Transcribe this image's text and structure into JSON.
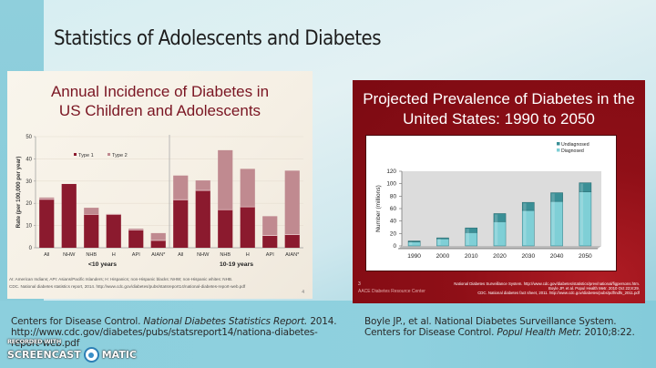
{
  "slide": {
    "title": "Statistics of Adolescents and Diabetes"
  },
  "left_figure": {
    "title_line1": "Annual Incidence of Diabetes in",
    "title_line2": "US Children and Adolescents",
    "footnote1": "AI: American Indians; API: Asians/Pacific Islanders; H: Hispanics; non-Hispanic blacks: NHW; non-Hispanic whites: NHB.",
    "footnote2": "CDC. National diabetes statistics report, 2014. http://www.cdc.gov/diabetes/pubs/statsreport14/national-diabetes-report-web.pdf",
    "page_number": "4"
  },
  "right_figure": {
    "title_line1": "Projected Prevalence of Diabetes in the",
    "title_line2": "United States: 1990 to 2050",
    "slide_number": "3",
    "brand": "AACE Diabetes Resource Center",
    "ref1": "National Diabetes Surveillance System. http://www.cdc.gov/diabetes/statistics/prev/national/figpersons.htm.",
    "ref2": "Boyle JP, et al. Popul Health Metr. 2010 Oct 22;8:29.",
    "ref3": "CDC. National diabetes fact sheet, 2011. http://www.cdc.gov/diabetes/pubs/pdf/ndfs_2011.pdf"
  },
  "references": {
    "left_line1_a": "Centers for Disease Control. ",
    "left_line1_italic": "National Diabetes Statistics Report.",
    "left_line1_b": " 2014.",
    "left_line2": "http://www.cdc.gov/diabetes/pubs/statsreport14/nationa-diabetes-",
    "left_line3": "report-web.pdf",
    "right_line1": "Boyle JP., et al.  National Diabetes Surveillance System.",
    "right_line2_a": "Centers for Disease Control. ",
    "right_line2_italic": "Popul Health Metr.",
    "right_line2_b": " 2010;8:22."
  },
  "watermark": {
    "recorded": "RECORDED WITH",
    "brand_a": "SCREENCAST",
    "brand_b": "MATIC"
  },
  "colors": {
    "type1": "#8b1a2e",
    "type2": "#c08a90",
    "diagnosed": "#7fcfd6",
    "undiagnosed": "#3a8f96",
    "title_red": "#7a1522",
    "frame_red": "#8f0f17"
  },
  "chart_data": [
    {
      "type": "bar",
      "stacked": true,
      "title": "Annual Incidence of Diabetes in US Children and Adolescents",
      "xlabel": "",
      "ylabel": "Rate (per 100,000 per year)",
      "ylim": [
        0,
        50
      ],
      "yticks": [
        0,
        10,
        20,
        30,
        40,
        50
      ],
      "groups": [
        {
          "label": "<10 years",
          "categories": [
            "All",
            "NHW",
            "NHB",
            "H",
            "API",
            "AIAN*"
          ]
        },
        {
          "label": "10-19 years",
          "categories": [
            "All",
            "NHW",
            "NHB",
            "H",
            "API",
            "AIAN*"
          ]
        }
      ],
      "legend": {
        "position": "top-left",
        "entries": [
          "Type 1",
          "Type 2"
        ]
      },
      "series": [
        {
          "name": "Type 1",
          "values": [
            21.8,
            28.7,
            15.0,
            15.0,
            8.0,
            3.3,
            21.6,
            25.8,
            17.1,
            18.4,
            5.5,
            5.9
          ]
        },
        {
          "name": "Type 2",
          "values": [
            0.8,
            0.0,
            3.0,
            0.2,
            0.6,
            3.3,
            10.9,
            4.5,
            26.8,
            17.1,
            8.7,
            28.8
          ]
        }
      ],
      "grid": true
    },
    {
      "type": "bar",
      "stacked": true,
      "title": "Projected Prevalence of Diabetes in the United States: 1990 to 2050",
      "xlabel": "",
      "ylabel": "Number (millions)",
      "ylim": [
        0,
        120
      ],
      "yticks": [
        0,
        20,
        40,
        60,
        80,
        100,
        120
      ],
      "categories": [
        "1990",
        "2000",
        "2010",
        "2020",
        "2030",
        "2040",
        "2050"
      ],
      "legend": {
        "position": "top-right",
        "entries": [
          "Undiagnosed",
          "Diagnosed"
        ]
      },
      "series": [
        {
          "name": "Diagnosed",
          "values": [
            6.5,
            11.5,
            21.5,
            39,
            57,
            71.5,
            87
          ]
        },
        {
          "name": "Undiagnosed",
          "values": [
            1.5,
            1.5,
            7.5,
            13,
            13,
            14,
            14.5
          ]
        }
      ],
      "grid": false
    }
  ]
}
